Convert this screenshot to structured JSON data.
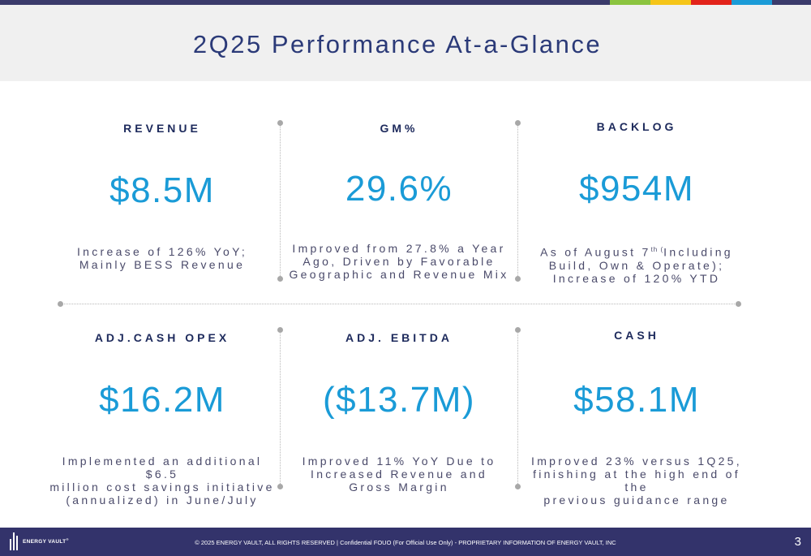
{
  "colors": {
    "accent": "#1a9bd7",
    "navy": "#33336b",
    "heading": "#1d2a5c",
    "top_bar_segments": [
      "#8bc43f",
      "#f5c518",
      "#e2231a",
      "#1a9bd7",
      "#3b3b6b"
    ]
  },
  "slide": {
    "title": "2Q25 Performance At-a-Glance"
  },
  "metrics": [
    {
      "label": "REVENUE",
      "value": "$8.5M",
      "desc": [
        "Increase of 126% YoY;",
        "Mainly BESS Revenue"
      ]
    },
    {
      "label": "GM%",
      "value": "29.6%",
      "desc": [
        "Improved from 27.8% a Year",
        "Ago, Driven by Favorable",
        "Geographic and Revenue Mix"
      ]
    },
    {
      "label": "BACKLOG",
      "value": "$954M",
      "desc_line1_pre": "As of August 7",
      "desc_line1_sup": "th (",
      "desc_line1_post": "Including",
      "desc": [
        "Build, Own & Operate);",
        "Increase of 120% YTD"
      ]
    },
    {
      "label": "ADJ.CASH OPEX",
      "value": "$16.2M",
      "desc": [
        "Implemented an additional $6.5",
        "million cost savings initiative",
        "(annualized) in June/July"
      ]
    },
    {
      "label": "ADJ. EBITDA",
      "value": "($13.7M)",
      "desc": [
        "Improved 11% YoY Due to",
        "Increased Revenue and",
        "Gross Margin"
      ]
    },
    {
      "label": "CASH",
      "value": "$58.1M",
      "desc": [
        "Improved 23% versus 1Q25,",
        "finishing at the high end of the",
        "previous guidance range"
      ]
    }
  ],
  "footer": {
    "logo_text": "ENERGY VAULT",
    "logo_tm": "®",
    "copyright": "© 2025 ENERGY VAULT, ALL RIGHTS RESERVED  |  Confidential FOUO (For Official Use Only) - PROPRIETARY INFORMATION OF ENERGY VAULT, INC",
    "page_number": "3"
  }
}
